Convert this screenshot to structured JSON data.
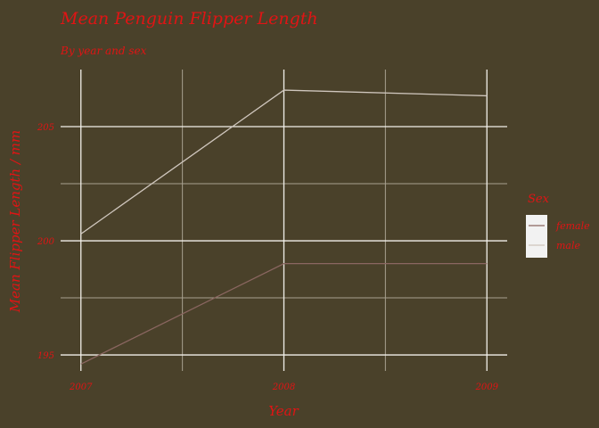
{
  "chart_data": {
    "type": "line",
    "title": "Mean Penguin Flipper Length",
    "subtitle": "By year and sex",
    "xlabel": "Year",
    "ylabel": "Mean Flipper Length / mm",
    "x": [
      2007,
      2008,
      2009
    ],
    "x_tick_labels": [
      "2007",
      "2008",
      "2009"
    ],
    "y_ticks": [
      195,
      200,
      205
    ],
    "y_tick_labels": [
      "195",
      "200",
      "205"
    ],
    "ylim": [
      194.3,
      207.5
    ],
    "xlim": [
      2006.9,
      2009.1
    ],
    "legend_title": "Sex",
    "legend_position": "right",
    "grid": true,
    "series": [
      {
        "name": "female",
        "values": [
          194.6,
          199.0,
          199.0
        ],
        "color": "#8a6660"
      },
      {
        "name": "male",
        "values": [
          200.3,
          206.6,
          206.35
        ],
        "color": "#cfc6bd"
      }
    ]
  },
  "colors": {
    "background": "#4a412a",
    "grid_major": "#f2f0ea",
    "grid_minor": "#a8a190",
    "text": "#e01414",
    "legend_key_bg": "#f2f2f2"
  }
}
